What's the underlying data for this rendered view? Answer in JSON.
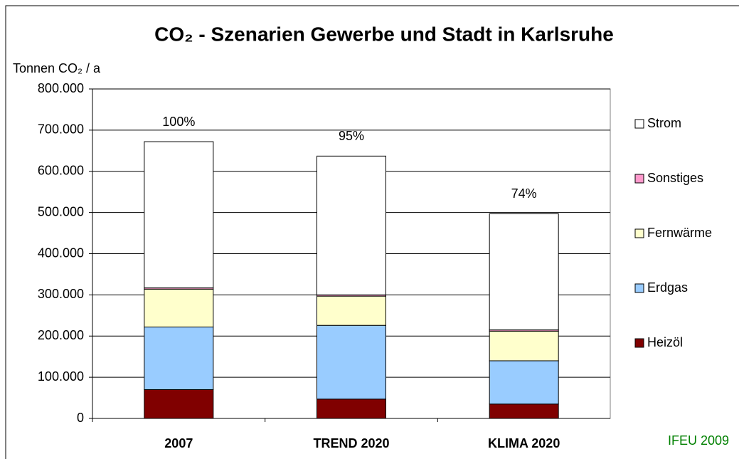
{
  "chart_data": {
    "type": "stacked_bar",
    "title": "CO₂ - Szenarien Gewerbe und Stadt in Karlsruhe",
    "y_label": "Tonnen CO₂ / a",
    "source": "IFEU 2009",
    "categories": [
      "2007",
      "TREND 2020",
      "KLIMA 2020"
    ],
    "annotations": [
      "100%",
      "95%",
      "74%"
    ],
    "series": [
      {
        "name": "Heizöl",
        "color": "#800000",
        "values": [
          70000,
          47000,
          35000
        ]
      },
      {
        "name": "Erdgas",
        "color": "#99ccff",
        "values": [
          152000,
          179000,
          105000
        ]
      },
      {
        "name": "Fernwärme",
        "color": "#ffffcc",
        "values": [
          92000,
          71000,
          72000
        ]
      },
      {
        "name": "Sonstiges",
        "color": "#ff99cc",
        "values": [
          3000,
          3000,
          3000
        ]
      },
      {
        "name": "Strom",
        "color": "#ffffff",
        "values": [
          355000,
          337000,
          282000
        ]
      }
    ],
    "ylim": [
      0,
      800000
    ],
    "yticks": [
      0,
      {
        "value": 100000,
        "label": "100.000"
      },
      {
        "value": 200000,
        "label": "200.000"
      },
      {
        "value": 300000,
        "label": "300.000"
      },
      {
        "value": 400000,
        "label": "400.000"
      },
      {
        "value": 500000,
        "label": "500.000"
      },
      {
        "value": 600000,
        "label": "600.000"
      },
      {
        "value": 700000,
        "label": "700.000"
      },
      {
        "value": 800000,
        "label": "800.000"
      }
    ],
    "grid": true,
    "legend": "right"
  }
}
